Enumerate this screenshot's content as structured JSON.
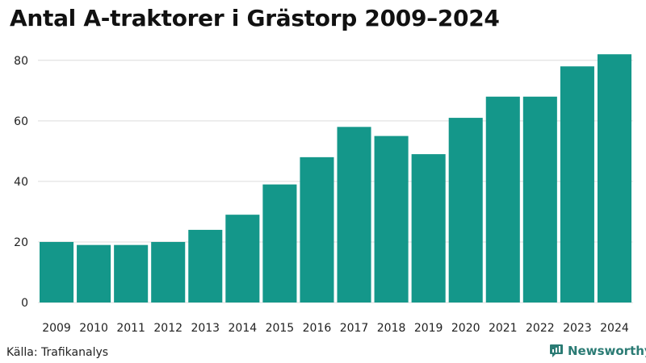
{
  "chart_data": {
    "type": "bar",
    "title": "Antal A-traktorer i Grästorp 2009–2024",
    "xlabel": "",
    "ylabel": "",
    "categories": [
      "2009",
      "2010",
      "2011",
      "2012",
      "2013",
      "2014",
      "2015",
      "2016",
      "2017",
      "2018",
      "2019",
      "2020",
      "2021",
      "2022",
      "2023",
      "2024"
    ],
    "values": [
      20,
      19,
      19,
      20,
      24,
      29,
      39,
      48,
      58,
      55,
      49,
      61,
      68,
      68,
      78,
      82
    ],
    "ylim": [
      0,
      85
    ],
    "yticks": [
      0,
      20,
      40,
      60,
      80
    ],
    "grid": true,
    "bar_color": "#14978a",
    "grid_color": "#dcdcdc"
  },
  "footer": {
    "source": "Källa: Trafikanalys",
    "brand": "Newsworthy",
    "brand_icon": "newsworthy-logo-icon",
    "brand_color": "#2b7b74"
  }
}
